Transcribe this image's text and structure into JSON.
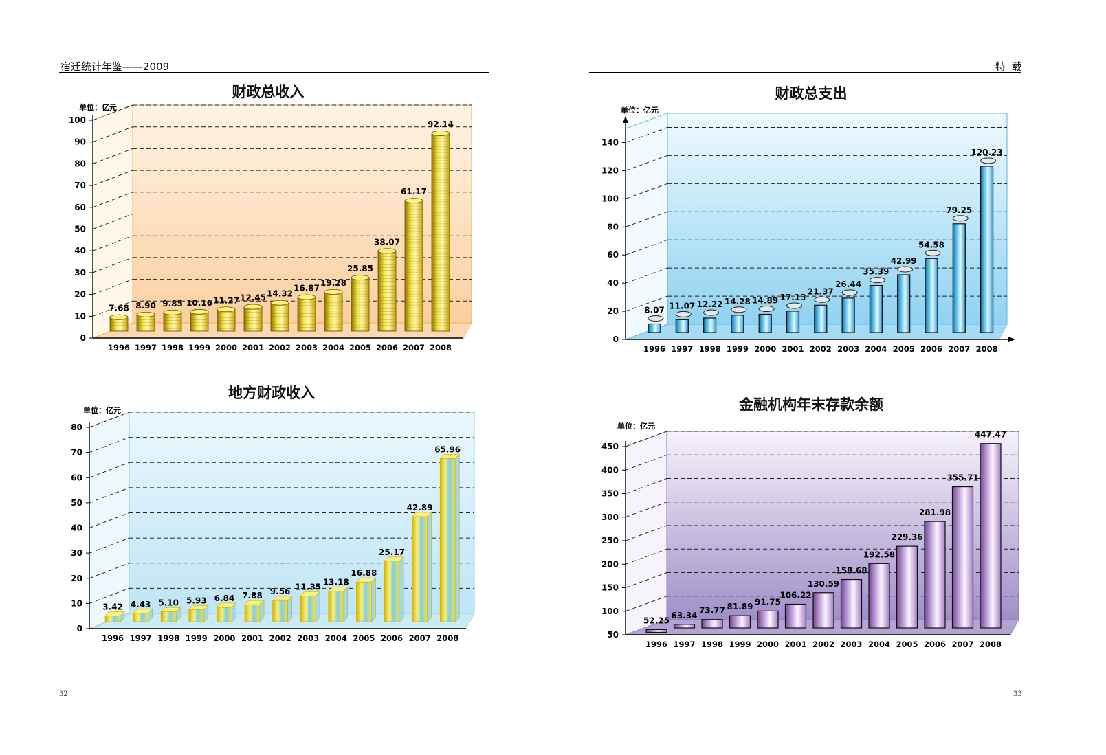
{
  "header": {
    "left_title": "宿迁统计年鉴——2009",
    "right_title": "特 载",
    "page_left": "32",
    "page_right": "33"
  },
  "colors": {
    "gold": "#f2d411",
    "gold_bg": "#fbd6ad",
    "blue": "#39b3e6",
    "blue_bg": "#b9e4f6",
    "purple": "#bf9fd6",
    "purple_bg": "#b7a7d5"
  },
  "chart_data": [
    {
      "id": "fiscal-revenue",
      "type": "bar",
      "title": "财政总收入",
      "unit_label": "单位：亿元",
      "categories": [
        "1996",
        "1997",
        "1998",
        "1999",
        "2000",
        "2001",
        "2002",
        "2003",
        "2004",
        "2005",
        "2006",
        "2007",
        "2008"
      ],
      "values": [
        7.68,
        8.9,
        9.85,
        10.16,
        11.27,
        12.45,
        14.32,
        16.87,
        19.28,
        25.85,
        38.07,
        61.17,
        92.14
      ],
      "labels": [
        "7.68",
        "8.90",
        "9.85",
        "10.16",
        "11.27",
        "12.45",
        "14.32",
        "16.87",
        "19.28",
        "25.85",
        "38.07",
        "61.17",
        "92.14"
      ],
      "yticks": [
        0,
        10,
        20,
        30,
        40,
        50,
        60,
        70,
        80,
        90,
        100
      ],
      "ylim": [
        0,
        100
      ],
      "grid": true
    },
    {
      "id": "fiscal-expenditure",
      "type": "bar",
      "title": "财政总支出",
      "unit_label": "单位：亿元",
      "categories": [
        "1996",
        "1997",
        "1998",
        "1999",
        "2000",
        "2001",
        "2002",
        "2003",
        "2004",
        "2005",
        "2006",
        "2007",
        "2008"
      ],
      "values": [
        8.07,
        11.07,
        12.22,
        14.28,
        14.89,
        17.13,
        21.37,
        26.44,
        35.39,
        42.99,
        54.58,
        79.25,
        120.23
      ],
      "labels": [
        "8.07",
        "11.07",
        "12.22",
        "14.28",
        "14.89",
        "17.13",
        "21.37",
        "26.44",
        "35.39",
        "42.99",
        "54.58",
        "79.25",
        "120.23"
      ],
      "yticks": [
        0,
        20,
        40,
        60,
        80,
        100,
        120,
        140
      ],
      "ylim": [
        0,
        150
      ],
      "grid": true
    },
    {
      "id": "local-fiscal-revenue",
      "type": "bar",
      "title": "地方财政收入",
      "unit_label": "单位：亿元",
      "categories": [
        "1996",
        "1997",
        "1998",
        "1999",
        "2000",
        "2001",
        "2002",
        "2003",
        "2004",
        "2005",
        "2006",
        "2007",
        "2008"
      ],
      "values": [
        3.42,
        4.43,
        5.1,
        5.93,
        6.84,
        7.88,
        9.56,
        11.35,
        13.18,
        16.88,
        25.17,
        42.89,
        65.96
      ],
      "labels": [
        "3.42",
        "4.43",
        "5.10",
        "5.93",
        "6.84",
        "7.88",
        "9.56",
        "11.35",
        "13.18",
        "16.88",
        "25.17",
        "42.89",
        "65.96"
      ],
      "yticks": [
        0,
        10,
        20,
        30,
        40,
        50,
        60,
        70,
        80
      ],
      "ylim": [
        0,
        80
      ],
      "grid": true
    },
    {
      "id": "deposits-balance",
      "type": "bar",
      "title": "金融机构年末存款余额",
      "unit_label": "单位：亿元",
      "categories": [
        "1996",
        "1997",
        "1998",
        "1999",
        "2000",
        "2001",
        "2002",
        "2003",
        "2004",
        "2005",
        "2006",
        "2007",
        "2008"
      ],
      "values": [
        52.25,
        63.34,
        73.77,
        81.89,
        91.75,
        106.22,
        130.59,
        158.68,
        192.58,
        229.36,
        281.98,
        355.71,
        447.47
      ],
      "labels": [
        "52.25",
        "63.34",
        "73.77",
        "81.89",
        "91.75",
        "106.22",
        "130.59",
        "158.68",
        "192.58",
        "229.36",
        "281.98",
        "355.71",
        "447.47"
      ],
      "yticks": [
        50,
        100,
        150,
        200,
        250,
        300,
        350,
        400,
        450
      ],
      "ylim": [
        50,
        450
      ],
      "grid": true
    }
  ]
}
